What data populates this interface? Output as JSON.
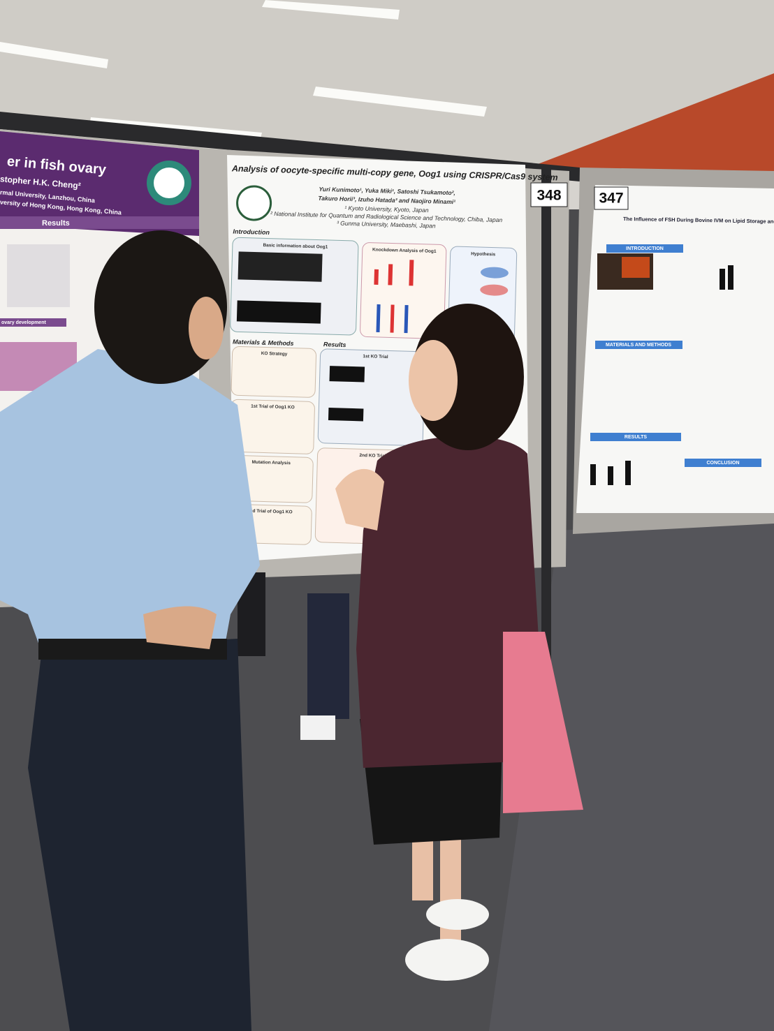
{
  "left_poster": {
    "title": "er in fish ovary",
    "authors": "stopher H.K. Cheng²",
    "affiliations": [
      "rmal University, Lanzhou, China",
      "versity of Hong Kong, Hong Kong, China"
    ],
    "section": "Results",
    "subsection": "ovary development"
  },
  "center_poster": {
    "number": "348",
    "title": "Analysis of oocyte-specific multi-copy gene, Oog1 using CRISPR/Cas9 system",
    "authors": [
      "Yuri Kunimoto¹, Yuka Miki¹, Satoshi Tsukamoto²,",
      "Takuro Horii³, Izuho Hatada³ and Naojiro Minami¹"
    ],
    "affiliations": [
      "¹ Kyoto University, Kyoto, Japan",
      "² National Institute for Quantum and Radiological Science and Technology, Chiba, Japan",
      "³ Gunma University, Maebashi, Japan"
    ],
    "sections": [
      "Introduction",
      "Materials & Methods",
      "Results"
    ],
    "boxes": [
      "Basic information about Oog1",
      "Knockdown Analysis of Oog1",
      "Hypothesis",
      "KO Strategy",
      "1st Trial of Oog1 KO",
      "Mutation Analysis",
      "2nd Trial of Oog1 KO",
      "1st KO Trial",
      "2nd KO Trial"
    ]
  },
  "right_poster": {
    "number": "347",
    "title": "The Influence of FSH During Bovine IVM on Lipid Storage and Metabolism",
    "sections": [
      "INTRODUCTION",
      "MATERIALS AND METHODS",
      "RESULTS",
      "CONCLUSION"
    ]
  }
}
